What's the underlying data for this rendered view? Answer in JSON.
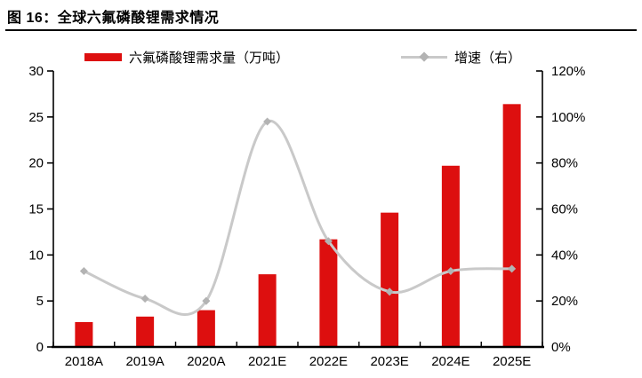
{
  "title": "图 16：全球六氟磷酸锂需求情况",
  "legend": {
    "bars_label": "六氟磷酸锂需求量（万吨）",
    "line_label": "增速（右）"
  },
  "colors": {
    "bar": "#dd0f0f",
    "line": "#c9c9c9",
    "marker": "#b3b3b3",
    "axis": "#000000",
    "text": "#000000"
  },
  "chart_data": {
    "type": "bar",
    "subtype": "combo bar + smooth line, dual axis",
    "categories": [
      "2018A",
      "2019A",
      "2020A",
      "2021E",
      "2022E",
      "2023E",
      "2024E",
      "2025E"
    ],
    "series": [
      {
        "name": "六氟磷酸锂需求量（万吨）",
        "type": "bar",
        "axis": "left",
        "values": [
          2.7,
          3.3,
          4.0,
          7.9,
          11.7,
          14.6,
          19.7,
          26.4
        ]
      },
      {
        "name": "增速（右）",
        "type": "line",
        "axis": "right",
        "values_percent": [
          33,
          21,
          20,
          98,
          46,
          24,
          33,
          34
        ]
      }
    ],
    "left_axis": {
      "label": "",
      "min": 0,
      "max": 30,
      "tick_labels": [
        "0",
        "5",
        "10",
        "15",
        "20",
        "25",
        "30"
      ]
    },
    "right_axis": {
      "label": "",
      "min_percent": 0,
      "max_percent": 120,
      "tick_labels": [
        "0%",
        "20%",
        "40%",
        "60%",
        "80%",
        "100%",
        "120%"
      ]
    },
    "grid": false,
    "legend_position": "top"
  }
}
